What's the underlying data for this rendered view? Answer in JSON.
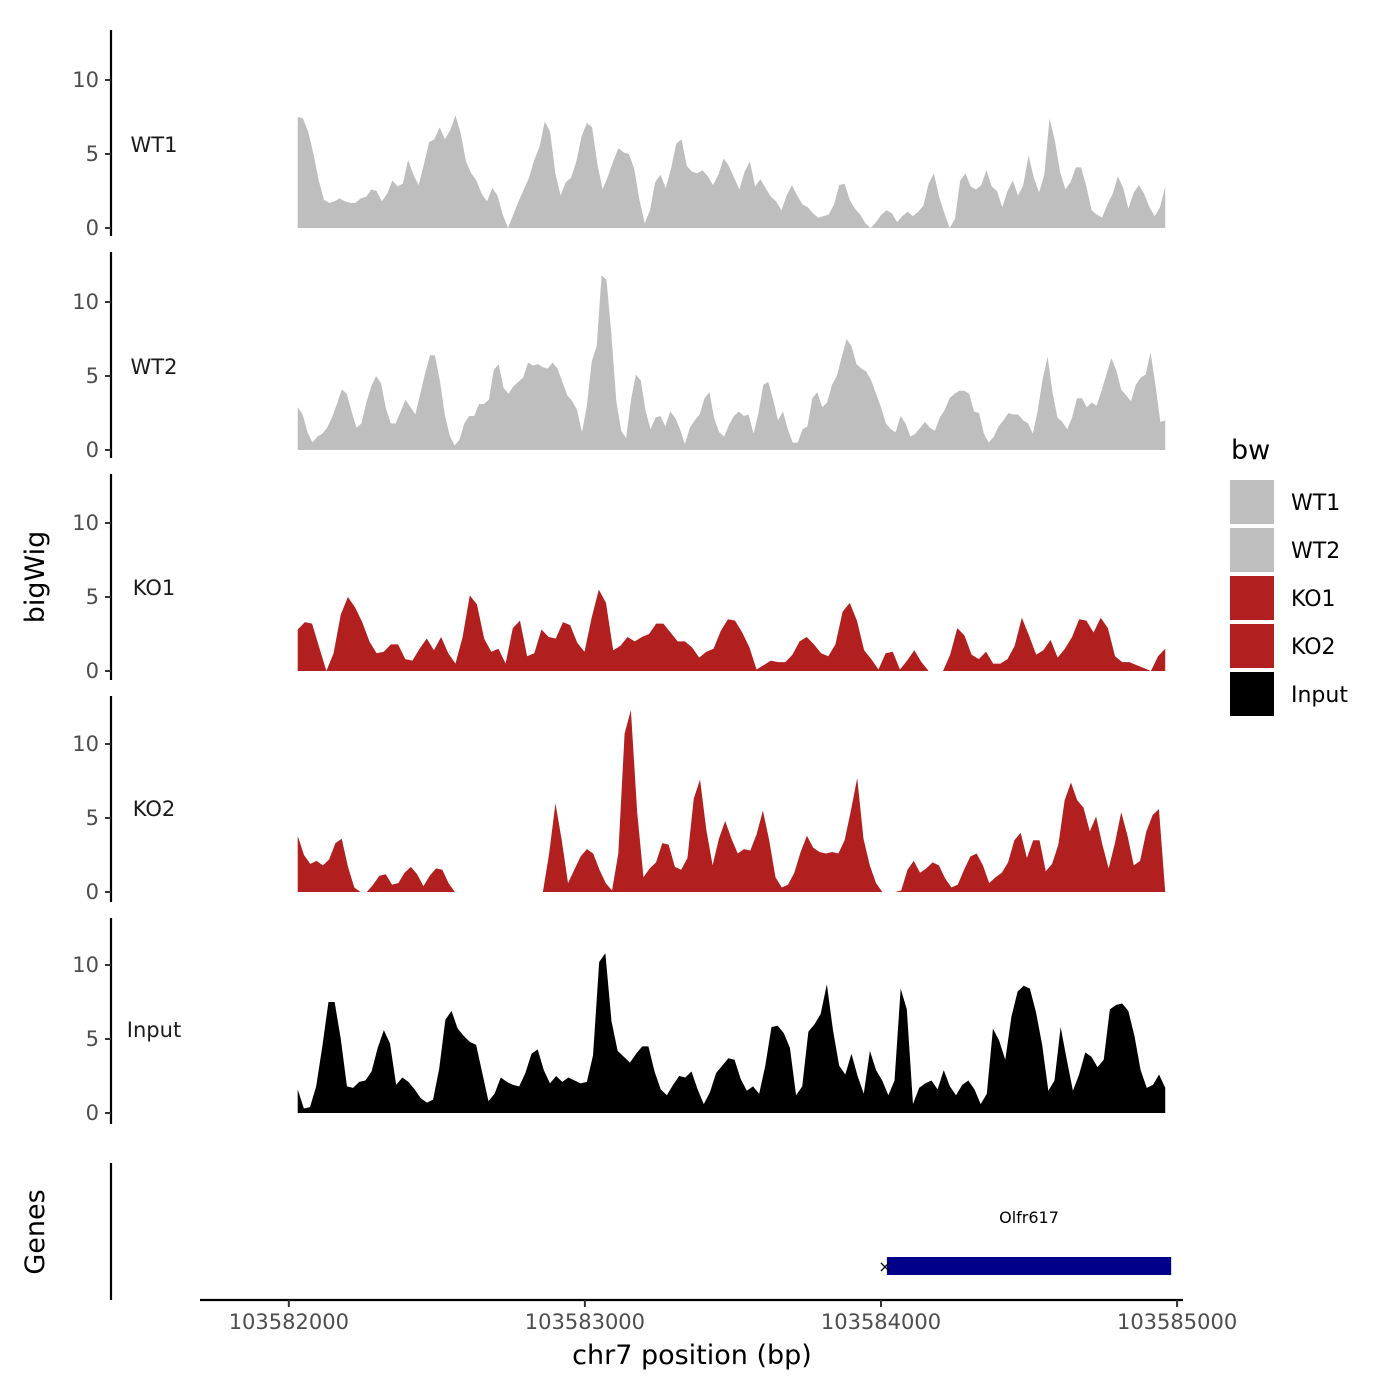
{
  "chart_data": {
    "type": "area",
    "ylabel": "bigWig",
    "genes_label": "Genes",
    "xlabel": "chr7 position (bp)",
    "x_ticks": [
      "103582000",
      "103583000",
      "103584000",
      "103585000"
    ],
    "x_tick_values": [
      103582000,
      103583000,
      103584000,
      103585000
    ],
    "xlim": [
      103581700,
      103585020
    ],
    "x_data_range": [
      103582030,
      103584960
    ],
    "y_ticks": [
      "0",
      "5",
      "10"
    ],
    "y_tick_values": [
      0,
      5,
      10
    ],
    "ylim": [
      0,
      13
    ],
    "legend_title": "bw",
    "tracks": [
      {
        "name": "WT1",
        "color": "#bebebe",
        "values": [
          7.5,
          7.4,
          6.5,
          5.0,
          3.2,
          1.9,
          1.7,
          1.8,
          2.0,
          1.8,
          1.7,
          1.7,
          2.0,
          2.1,
          2.6,
          2.5,
          1.8,
          2.3,
          3.2,
          2.8,
          3.0,
          4.6,
          3.6,
          2.9,
          4.3,
          5.8,
          6.0,
          6.8,
          6.0,
          6.6,
          7.6,
          6.4,
          4.5,
          3.7,
          3.2,
          2.3,
          1.8,
          2.7,
          2.2,
          0.9,
          0.0,
          0.9,
          1.8,
          2.6,
          3.4,
          4.6,
          5.5,
          7.2,
          6.5,
          3.7,
          2.2,
          3.1,
          3.4,
          4.5,
          6.2,
          7.1,
          6.8,
          4.3,
          2.6,
          3.5,
          4.5,
          5.4,
          5.1,
          5.0,
          4.0,
          1.9,
          0.3,
          1.2,
          3.1,
          3.6,
          2.7,
          4.0,
          5.7,
          6.0,
          4.2,
          3.8,
          3.7,
          3.9,
          3.5,
          2.9,
          3.6,
          4.7,
          4.2,
          3.4,
          2.6,
          3.8,
          4.5,
          2.8,
          3.3,
          2.7,
          2.1,
          1.8,
          1.2,
          2.2,
          2.9,
          2.2,
          1.6,
          1.4,
          1.0,
          0.7,
          0.8,
          0.9,
          1.6,
          2.9,
          3.0,
          1.9,
          1.3,
          0.9,
          0.3,
          0.0,
          0.4,
          0.9,
          1.2,
          1.0,
          0.4,
          0.8,
          1.1,
          0.8,
          1.1,
          1.5,
          3.0,
          3.7,
          2.1,
          1.0,
          0.0,
          0.6,
          3.2,
          3.7,
          2.8,
          2.6,
          2.9,
          3.9,
          2.8,
          2.5,
          1.4,
          2.5,
          3.2,
          2.2,
          2.9,
          4.9,
          3.4,
          2.4,
          3.6,
          7.4,
          5.9,
          3.8,
          2.6,
          3.1,
          4.1,
          4.1,
          2.8,
          1.2,
          0.9,
          0.7,
          1.6,
          2.3,
          3.5,
          2.7,
          1.3,
          2.4,
          2.9,
          2.3,
          1.4,
          0.8,
          1.4,
          2.8
        ]
      },
      {
        "name": "WT2",
        "color": "#bebebe",
        "values": [
          2.9,
          2.4,
          1.2,
          0.5,
          0.9,
          1.1,
          1.5,
          2.2,
          3.1,
          4.1,
          3.8,
          2.6,
          1.5,
          1.8,
          3.2,
          4.3,
          5.0,
          4.5,
          2.8,
          1.8,
          1.8,
          2.6,
          3.4,
          2.9,
          2.4,
          3.8,
          5.2,
          6.4,
          6.4,
          4.7,
          2.4,
          1.0,
          0.3,
          0.7,
          1.8,
          2.3,
          2.3,
          3.1,
          3.1,
          3.4,
          5.4,
          5.8,
          4.2,
          3.8,
          4.3,
          4.6,
          4.9,
          5.9,
          5.7,
          5.8,
          5.6,
          5.5,
          5.9,
          5.5,
          4.6,
          3.7,
          3.3,
          2.7,
          1.2,
          3.0,
          6.0,
          7.0,
          11.8,
          11.5,
          7.8,
          3.3,
          1.3,
          0.8,
          3.4,
          5.1,
          4.7,
          2.6,
          1.4,
          2.2,
          2.3,
          1.6,
          2.6,
          2.2,
          1.4,
          0.4,
          1.5,
          2.0,
          2.4,
          3.5,
          3.9,
          2.1,
          1.2,
          0.9,
          1.7,
          2.3,
          2.6,
          2.3,
          2.4,
          1.1,
          2.5,
          4.4,
          4.6,
          3.4,
          2.0,
          2.6,
          1.4,
          0.5,
          0.5,
          1.4,
          1.6,
          3.5,
          3.9,
          2.9,
          3.2,
          4.4,
          5.0,
          6.3,
          7.5,
          7.0,
          5.8,
          5.5,
          5.3,
          4.7,
          3.8,
          2.9,
          1.8,
          1.4,
          1.2,
          2.3,
          1.8,
          0.9,
          1.1,
          1.5,
          1.9,
          1.5,
          1.3,
          2.2,
          2.7,
          3.5,
          3.8,
          4.0,
          4.0,
          3.8,
          2.6,
          2.5,
          1.1,
          0.5,
          0.9,
          1.6,
          2.0,
          2.5,
          2.4,
          2.4,
          2.0,
          1.8,
          1.1,
          2.7,
          4.8,
          6.3,
          3.9,
          2.2,
          1.9,
          1.4,
          2.2,
          3.5,
          3.5,
          2.9,
          3.2,
          3.0,
          4.0,
          5.1,
          6.2,
          5.4,
          4.1,
          3.7,
          3.3,
          4.4,
          4.9,
          5.1,
          6.6,
          4.4,
          1.9,
          2.0
        ]
      },
      {
        "name": "KO1",
        "color": "#b21f1f",
        "values": [
          2.8,
          3.3,
          3.2,
          1.6,
          0.0,
          1.2,
          3.8,
          5.0,
          4.3,
          3.3,
          2.0,
          1.2,
          1.3,
          1.8,
          1.8,
          0.8,
          0.7,
          1.5,
          2.2,
          1.4,
          2.3,
          1.2,
          0.5,
          2.3,
          5.1,
          4.5,
          2.2,
          1.3,
          1.5,
          0.5,
          2.9,
          3.4,
          1.0,
          1.2,
          2.8,
          2.3,
          2.2,
          3.3,
          3.1,
          1.9,
          1.3,
          3.6,
          5.5,
          4.6,
          1.4,
          1.7,
          2.3,
          2.0,
          2.3,
          2.5,
          3.2,
          3.2,
          2.6,
          2.0,
          2.0,
          1.6,
          0.9,
          1.3,
          1.5,
          2.7,
          3.5,
          3.4,
          2.6,
          1.6,
          0.1,
          0.4,
          0.7,
          0.6,
          0.6,
          1.1,
          2.0,
          2.3,
          1.8,
          1.2,
          1.0,
          1.8,
          4.0,
          4.6,
          3.4,
          1.4,
          0.8,
          0.1,
          1.2,
          1.3,
          0.1,
          0.7,
          1.4,
          0.6,
          0.0,
          0.0,
          0.0,
          1.1,
          2.9,
          2.4,
          1.1,
          0.8,
          1.3,
          0.5,
          0.5,
          0.8,
          1.7,
          3.6,
          2.4,
          1.1,
          1.4,
          2.1,
          0.9,
          1.5,
          2.3,
          3.5,
          3.4,
          2.6,
          3.6,
          2.9,
          1.0,
          0.6,
          0.6,
          0.4,
          0.2,
          0.0,
          1.0,
          1.5
        ]
      },
      {
        "name": "KO2",
        "color": "#b21f1f",
        "values": [
          3.8,
          2.5,
          1.9,
          2.1,
          1.8,
          2.2,
          3.3,
          3.6,
          1.7,
          0.3,
          0.0,
          0.0,
          0.5,
          1.1,
          1.2,
          0.5,
          0.6,
          1.3,
          1.7,
          1.2,
          0.4,
          1.1,
          1.6,
          1.5,
          0.6,
          0.0,
          0.0,
          0.0,
          0.0,
          0.0,
          0.0,
          0.0,
          0.0,
          0.0,
          0.0,
          0.0,
          0.0,
          0.0,
          0.0,
          0.0,
          2.6,
          6.0,
          3.5,
          0.6,
          1.5,
          2.4,
          2.9,
          2.6,
          1.5,
          0.6,
          0.1,
          2.6,
          10.7,
          12.3,
          5.4,
          1.0,
          1.6,
          2.0,
          3.3,
          3.2,
          1.7,
          1.5,
          2.3,
          6.3,
          7.6,
          4.2,
          1.8,
          3.6,
          4.8,
          3.6,
          2.6,
          2.9,
          2.8,
          3.9,
          5.5,
          3.5,
          1.0,
          0.3,
          0.5,
          1.3,
          2.7,
          3.8,
          3.0,
          2.7,
          2.6,
          2.7,
          2.6,
          3.5,
          5.5,
          7.7,
          3.6,
          1.8,
          0.6,
          0.0,
          0.0,
          0.0,
          0.1,
          1.5,
          2.1,
          1.3,
          1.6,
          2.0,
          1.8,
          0.9,
          0.3,
          0.5,
          1.5,
          2.4,
          2.6,
          1.8,
          0.6,
          1.0,
          1.3,
          2.0,
          3.5,
          4.0,
          2.3,
          3.5,
          3.5,
          1.4,
          1.9,
          3.2,
          6.2,
          7.4,
          6.2,
          5.7,
          4.1,
          5.1,
          3.2,
          1.6,
          3.3,
          5.4,
          3.8,
          1.8,
          2.1,
          4.1,
          5.2,
          5.6,
          0.0
        ]
      },
      {
        "name": "Input",
        "color": "#000000",
        "values": [
          1.6,
          0.3,
          0.4,
          1.8,
          4.5,
          7.5,
          7.5,
          5.0,
          1.8,
          1.7,
          2.1,
          2.2,
          2.8,
          4.4,
          5.6,
          4.7,
          1.9,
          2.4,
          2.1,
          1.6,
          1.0,
          0.7,
          0.9,
          3.0,
          6.3,
          6.9,
          5.7,
          5.2,
          4.8,
          4.6,
          2.7,
          0.8,
          1.3,
          2.4,
          2.1,
          1.9,
          1.8,
          2.7,
          4.0,
          4.3,
          2.9,
          2.0,
          2.5,
          2.1,
          2.4,
          2.2,
          2.0,
          2.1,
          3.9,
          10.2,
          10.8,
          6.2,
          4.2,
          3.8,
          3.4,
          4.0,
          4.5,
          4.5,
          2.8,
          1.6,
          1.2,
          1.9,
          2.5,
          2.4,
          2.8,
          1.6,
          0.6,
          1.4,
          2.7,
          3.2,
          3.7,
          3.6,
          2.3,
          1.5,
          1.8,
          1.3,
          3.2,
          5.8,
          5.9,
          5.4,
          4.4,
          1.2,
          1.8,
          5.5,
          6.0,
          6.7,
          8.7,
          5.6,
          3.2,
          2.6,
          4.0,
          2.5,
          1.3,
          4.2,
          2.9,
          2.2,
          1.2,
          2.2,
          8.4,
          7.0,
          0.6,
          1.7,
          2.0,
          2.2,
          1.6,
          2.9,
          1.8,
          1.2,
          1.9,
          2.2,
          1.6,
          0.6,
          1.3,
          5.7,
          4.9,
          3.6,
          6.5,
          8.2,
          8.6,
          8.4,
          6.8,
          4.6,
          1.5,
          2.2,
          5.8,
          3.6,
          1.5,
          2.6,
          4.1,
          3.8,
          3.1,
          3.6,
          7.0,
          7.3,
          7.4,
          6.9,
          5.2,
          2.9,
          1.7,
          1.9,
          2.6,
          1.7
        ]
      }
    ],
    "gene": {
      "name": "Olfr617",
      "start": 103584020,
      "end": 103584980,
      "strand": "-",
      "color": "#00008b"
    }
  }
}
